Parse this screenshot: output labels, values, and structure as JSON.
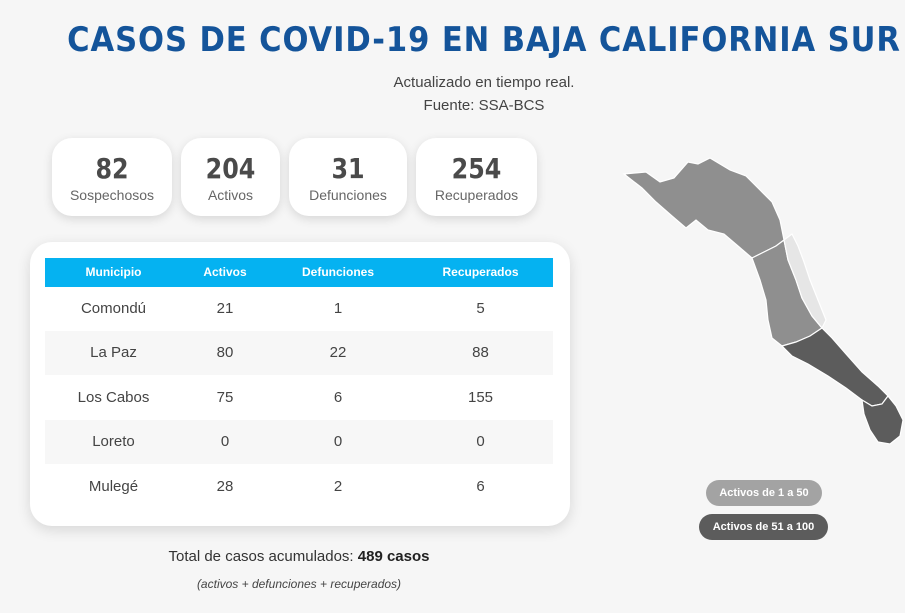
{
  "header": {
    "title": "CASOS DE COVID-19 EN BAJA CALIFORNIA SUR",
    "subtitle": "Actualizado en tiempo real.",
    "source": "Fuente: SSA-BCS"
  },
  "stats": [
    {
      "value": "82",
      "label": "Sospechosos"
    },
    {
      "value": "204",
      "label": "Activos"
    },
    {
      "value": "31",
      "label": "Defunciones"
    },
    {
      "value": "254",
      "label": "Recuperados"
    }
  ],
  "table": {
    "headers": [
      "Municipio",
      "Activos",
      "Defunciones",
      "Recuperados"
    ],
    "rows": [
      [
        "Comondú",
        "21",
        "1",
        "5"
      ],
      [
        "La Paz",
        "80",
        "22",
        "88"
      ],
      [
        "Los Cabos",
        "75",
        "6",
        "155"
      ],
      [
        "Loreto",
        "0",
        "0",
        "0"
      ],
      [
        "Mulegé",
        "28",
        "2",
        "6"
      ]
    ]
  },
  "total": {
    "label": "Total de casos acumulados:",
    "value": "489 casos",
    "note": "(activos + defunciones + recuperados)"
  },
  "legend": {
    "low": "Activos de 1 a 50",
    "high": "Activos de 51 a 100"
  },
  "colors": {
    "title": "#14549a",
    "table_header": "#05b2f1",
    "legend_low": "#a3a3a3",
    "legend_high": "#5c5c5c",
    "map_none": "#e6e6e6"
  }
}
